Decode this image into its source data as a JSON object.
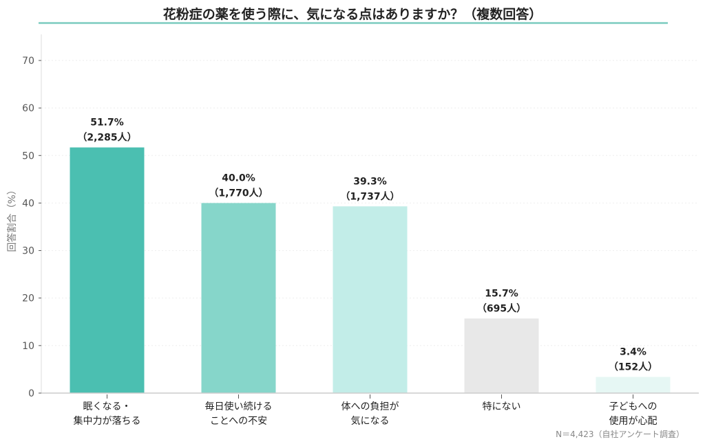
{
  "chart_data": {
    "type": "bar",
    "title": "花粉症の薬を使う際に、気になる点はありますか？（複数回答）",
    "ylabel": "回答割合（%）",
    "xlabel": "",
    "ylim": [
      0,
      75
    ],
    "yticks": [
      0,
      10,
      20,
      30,
      40,
      50,
      60,
      70
    ],
    "grid": true,
    "categories": [
      [
        "眠くなる・",
        "集中力が落ちる"
      ],
      [
        "毎日使い続ける",
        "ことへの不安"
      ],
      [
        "体への負担が",
        "気になる"
      ],
      [
        "特にない"
      ],
      [
        "子どもへの",
        "使用が心配"
      ]
    ],
    "values": [
      51.7,
      40.0,
      39.3,
      15.7,
      3.4
    ],
    "value_labels": [
      "51.7%",
      "40.0%",
      "39.3%",
      "15.7%",
      "3.4%"
    ],
    "count_labels": [
      "（2,285人）",
      "（1,770人）",
      "（1,737人）",
      "（695人）",
      "（152人）"
    ],
    "colors": [
      "#4bbfb1",
      "#86d6ca",
      "#c2ede8",
      "#e8e8e8",
      "#e6f7f4"
    ],
    "note": "N＝4,423（自社アンケート調査）"
  }
}
